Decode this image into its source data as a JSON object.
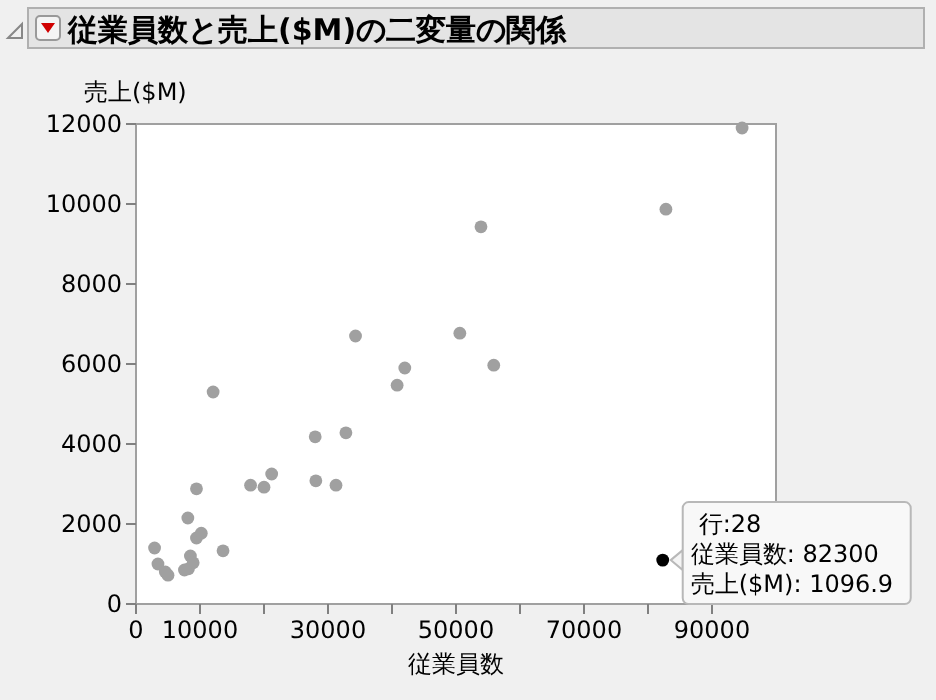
{
  "chart_data": {
    "type": "scatter",
    "title": "従業員数と売上($M)の二変量の関係",
    "xlabel": "従業員数",
    "ylabel": "売上($M)",
    "x": [
      2900,
      3430,
      4580,
      5000,
      7570,
      8200,
      8500,
      8930,
      8100,
      9450,
      9450,
      10200,
      13600,
      12050,
      17900,
      20000,
      21200,
      28000,
      28100,
      31250,
      32800,
      34300,
      40800,
      42000,
      50600,
      53900,
      55900,
      82800,
      94700,
      82300
    ],
    "values": [
      1400,
      1000,
      800,
      720,
      850,
      880,
      1200,
      1030,
      2150,
      2880,
      1650,
      1770,
      1330,
      5300,
      2970,
      2920,
      3250,
      4180,
      3080,
      2970,
      4280,
      6700,
      5470,
      5900,
      6770,
      9430,
      5970,
      9870,
      11900,
      1096.9
    ],
    "colors": [
      "#a0a0a0",
      "#a0a0a0",
      "#a0a0a0",
      "#a0a0a0",
      "#a0a0a0",
      "#a0a0a0",
      "#a0a0a0",
      "#a0a0a0",
      "#a0a0a0",
      "#a0a0a0",
      "#a0a0a0",
      "#a0a0a0",
      "#a0a0a0",
      "#a0a0a0",
      "#a0a0a0",
      "#a0a0a0",
      "#a0a0a0",
      "#a0a0a0",
      "#a0a0a0",
      "#a0a0a0",
      "#a0a0a0",
      "#a0a0a0",
      "#a0a0a0",
      "#a0a0a0",
      "#a0a0a0",
      "#a0a0a0",
      "#a0a0a0",
      "#a0a0a0",
      "#a0a0a0",
      "#000000"
    ],
    "marker": "circle",
    "xlim": [
      0,
      100000
    ],
    "xticks": [
      0,
      10000,
      {
        "value": 20000,
        "label": null
      },
      30000,
      {
        "value": 40000,
        "label": null
      },
      50000,
      {
        "value": 60000,
        "label": null
      },
      70000,
      {
        "value": 80000,
        "label": null
      },
      90000
    ],
    "ylim": [
      0,
      12000
    ],
    "yticks": [
      0,
      2000,
      4000,
      6000,
      8000,
      10000,
      12000
    ],
    "annotations": [
      "行:28",
      "従業員数: 82300",
      "売上($M): 1096.9"
    ]
  }
}
